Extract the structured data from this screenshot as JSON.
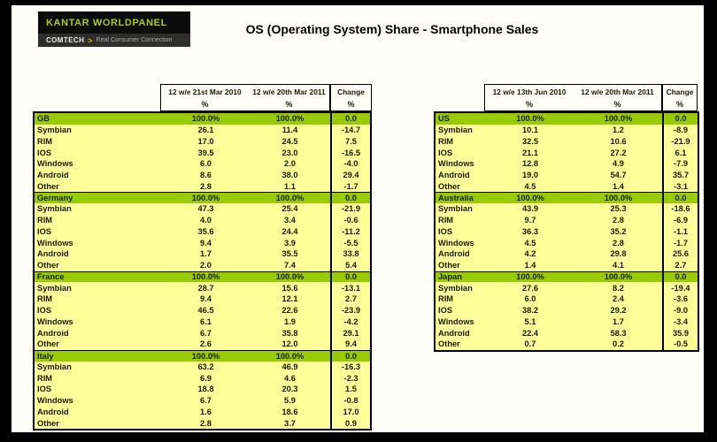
{
  "title": "OS (Operating System) Share - Smartphone Sales",
  "logo": {
    "brand": "KANTAR WORLDPANEL",
    "division": "COMTECH",
    "chevron": ">",
    "tagline": "Real Consumer Connection"
  },
  "colors": {
    "country_row_bg": "#99CC00",
    "data_row_bg": "#FFFF99",
    "brand_green": "#AFC80A",
    "table_border": "#000000"
  },
  "tables": [
    {
      "name": "europe",
      "header": {
        "col1": "12 w/e 21st Mar 2010",
        "col2": "12 w/e 20th Mar 2011",
        "change": "Change",
        "unit": "%"
      },
      "sections": [
        {
          "country": "GB",
          "total": [
            "100.0%",
            "100.0%",
            "0.0"
          ],
          "rows": [
            [
              "Symbian",
              "26.1",
              "11.4",
              "-14.7"
            ],
            [
              "RIM",
              "17.0",
              "24.5",
              "7.5"
            ],
            [
              "IOS",
              "39.5",
              "23.0",
              "-16.5"
            ],
            [
              "Windows",
              "6.0",
              "2.0",
              "-4.0"
            ],
            [
              "Android",
              "8.6",
              "38.0",
              "29.4"
            ],
            [
              "Other",
              "2.8",
              "1.1",
              "-1.7"
            ]
          ]
        },
        {
          "country": "Germany",
          "total": [
            "100.0%",
            "100.0%",
            "0.0"
          ],
          "rows": [
            [
              "Symbian",
              "47.3",
              "25.4",
              "-21.9"
            ],
            [
              "RIM",
              "4.0",
              "3.4",
              "-0.6"
            ],
            [
              "IOS",
              "35.6",
              "24.4",
              "-11.2"
            ],
            [
              "Windows",
              "9.4",
              "3.9",
              "-5.5"
            ],
            [
              "Android",
              "1.7",
              "35.5",
              "33.8"
            ],
            [
              "Other",
              "2.0",
              "7.4",
              "5.4"
            ]
          ]
        },
        {
          "country": "France",
          "total": [
            "100.0%",
            "100.0%",
            "0.0"
          ],
          "rows": [
            [
              "Symbian",
              "28.7",
              "15.6",
              "-13.1"
            ],
            [
              "RIM",
              "9.4",
              "12.1",
              "2.7"
            ],
            [
              "IOS",
              "46.5",
              "22.6",
              "-23.9"
            ],
            [
              "Windows",
              "6.1",
              "1.9",
              "-4.2"
            ],
            [
              "Android",
              "6.7",
              "35.8",
              "29.1"
            ],
            [
              "Other",
              "2.6",
              "12.0",
              "9.4"
            ]
          ]
        },
        {
          "country": "Italy",
          "total": [
            "100.0%",
            "100.0%",
            "0.0"
          ],
          "rows": [
            [
              "Symbian",
              "63.2",
              "46.9",
              "-16.3"
            ],
            [
              "RIM",
              "6.9",
              "4.6",
              "-2.3"
            ],
            [
              "IOS",
              "18.8",
              "20.3",
              "1.5"
            ],
            [
              "Windows",
              "6.7",
              "5.9",
              "-0.8"
            ],
            [
              "Android",
              "1.6",
              "18.6",
              "17.0"
            ],
            [
              "Other",
              "2.8",
              "3.7",
              "0.9"
            ]
          ]
        }
      ]
    },
    {
      "name": "international",
      "header": {
        "col1": "12 w/e 13th Jun 2010",
        "col2": "12 w/e 20th Mar 2011",
        "change": "Change",
        "unit": "%"
      },
      "sections": [
        {
          "country": "US",
          "total": [
            "100.0%",
            "100.0%",
            "0.0"
          ],
          "rows": [
            [
              "Symbian",
              "10.1",
              "1.2",
              "-8.9"
            ],
            [
              "RIM",
              "32.5",
              "10.6",
              "-21.9"
            ],
            [
              "IOS",
              "21.1",
              "27.2",
              "6.1"
            ],
            [
              "Windows",
              "12.8",
              "4.9",
              "-7.9"
            ],
            [
              "Android",
              "19.0",
              "54.7",
              "35.7"
            ],
            [
              "Other",
              "4.5",
              "1.4",
              "-3.1"
            ]
          ]
        },
        {
          "country": "Australia",
          "total": [
            "100.0%",
            "100.0%",
            "0.0"
          ],
          "rows": [
            [
              "Symbian",
              "43.9",
              "25.3",
              "-18.6"
            ],
            [
              "RIM",
              "9.7",
              "2.8",
              "-6.9"
            ],
            [
              "IOS",
              "36.3",
              "35.2",
              "-1.1"
            ],
            [
              "Windows",
              "4.5",
              "2.8",
              "-1.7"
            ],
            [
              "Android",
              "4.2",
              "29.8",
              "25.6"
            ],
            [
              "Other",
              "1.4",
              "4.1",
              "2.7"
            ]
          ]
        },
        {
          "country": "Japan",
          "total": [
            "100.0%",
            "100.0%",
            "0.0"
          ],
          "rows": [
            [
              "Symbian",
              "27.6",
              "8.2",
              "-19.4"
            ],
            [
              "RIM",
              "6.0",
              "2.4",
              "-3.6"
            ],
            [
              "IOS",
              "38.2",
              "29.2",
              "-9.0"
            ],
            [
              "Windows",
              "5.1",
              "1.7",
              "-3.4"
            ],
            [
              "Android",
              "22.4",
              "58.3",
              "35.9"
            ],
            [
              "Other",
              "0.7",
              "0.2",
              "-0.5"
            ]
          ]
        }
      ]
    }
  ]
}
